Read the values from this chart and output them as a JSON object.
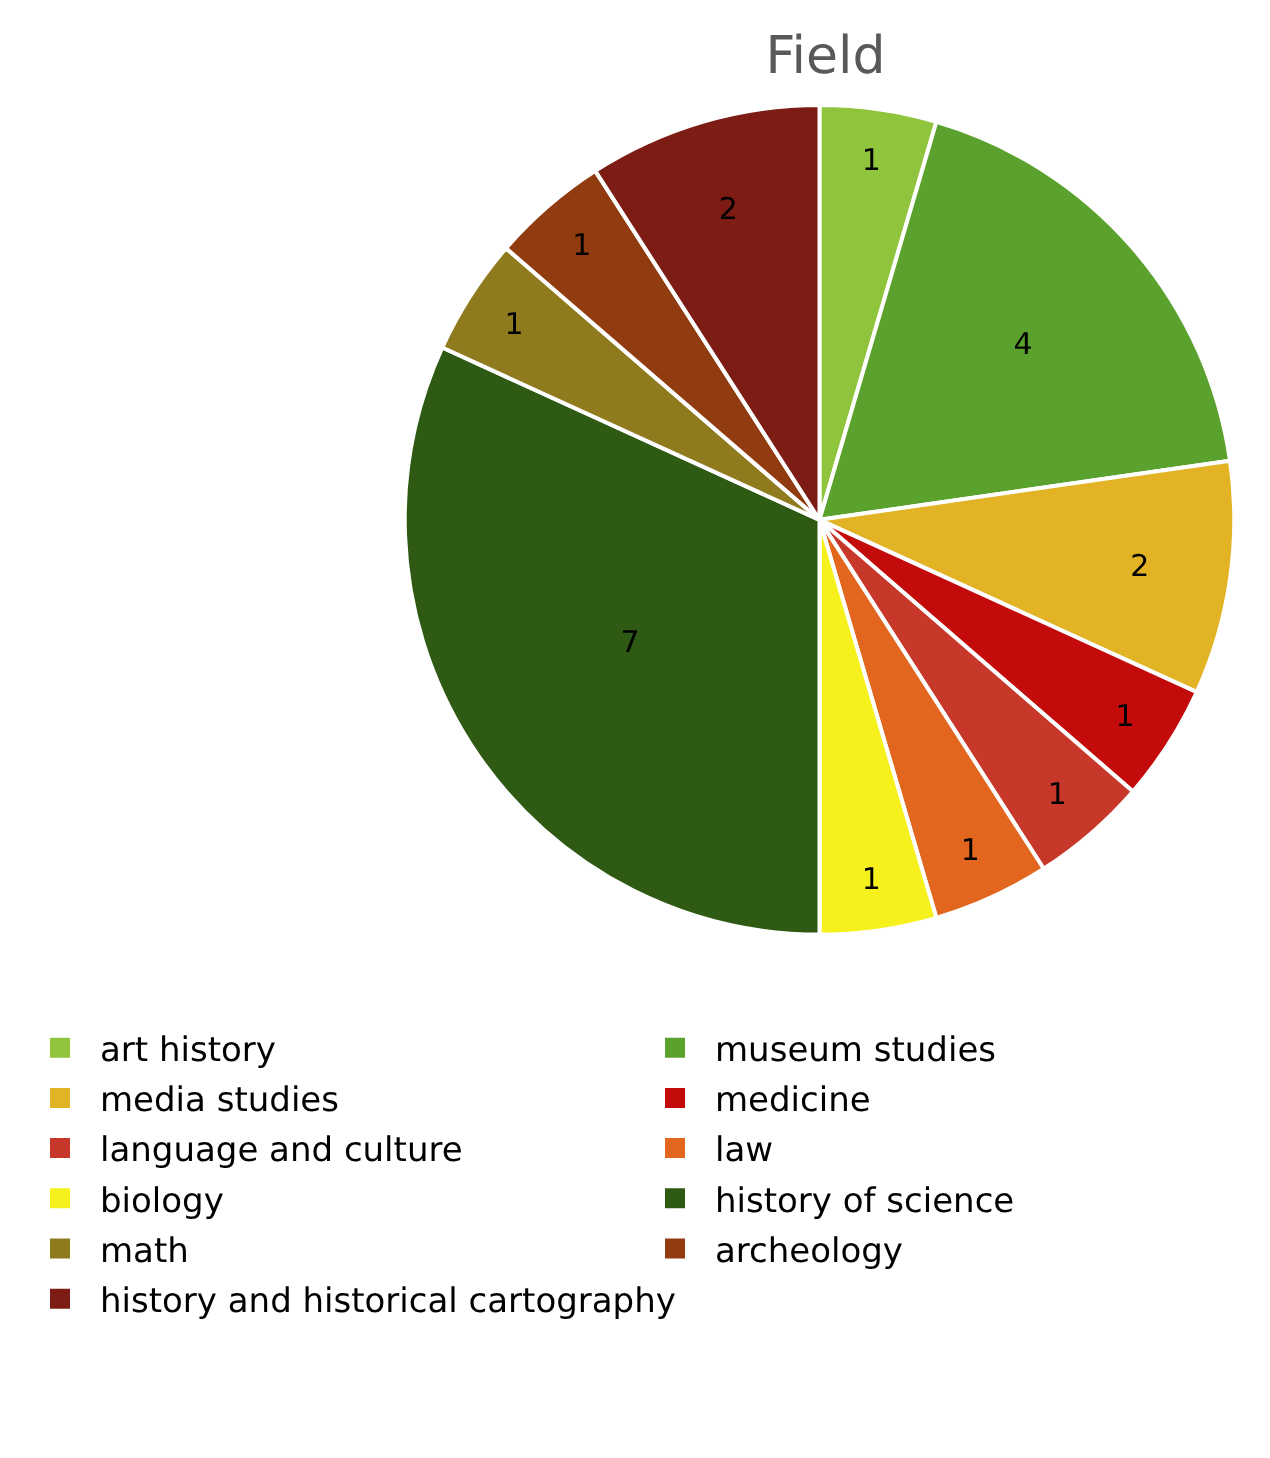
{
  "chart_data": {
    "type": "pie",
    "title": "Field",
    "categories": [
      "art history",
      "museum studies",
      "media studies",
      "medicine",
      "language and culture",
      "law",
      "biology",
      "history of science",
      "math",
      "archeology",
      "history and historical cartography"
    ],
    "values": [
      1,
      4,
      2,
      1,
      1,
      1,
      1,
      7,
      1,
      1,
      2
    ],
    "colors": [
      "#8fc43c",
      "#5ba12e",
      "#e2b324",
      "#c30b0b",
      "#c8382a",
      "#e2661e",
      "#f6f01c",
      "#2f5a14",
      "#8f7a1e",
      "#913c10",
      "#7c1c14"
    ],
    "data_labels": true,
    "legend": "bottom"
  }
}
